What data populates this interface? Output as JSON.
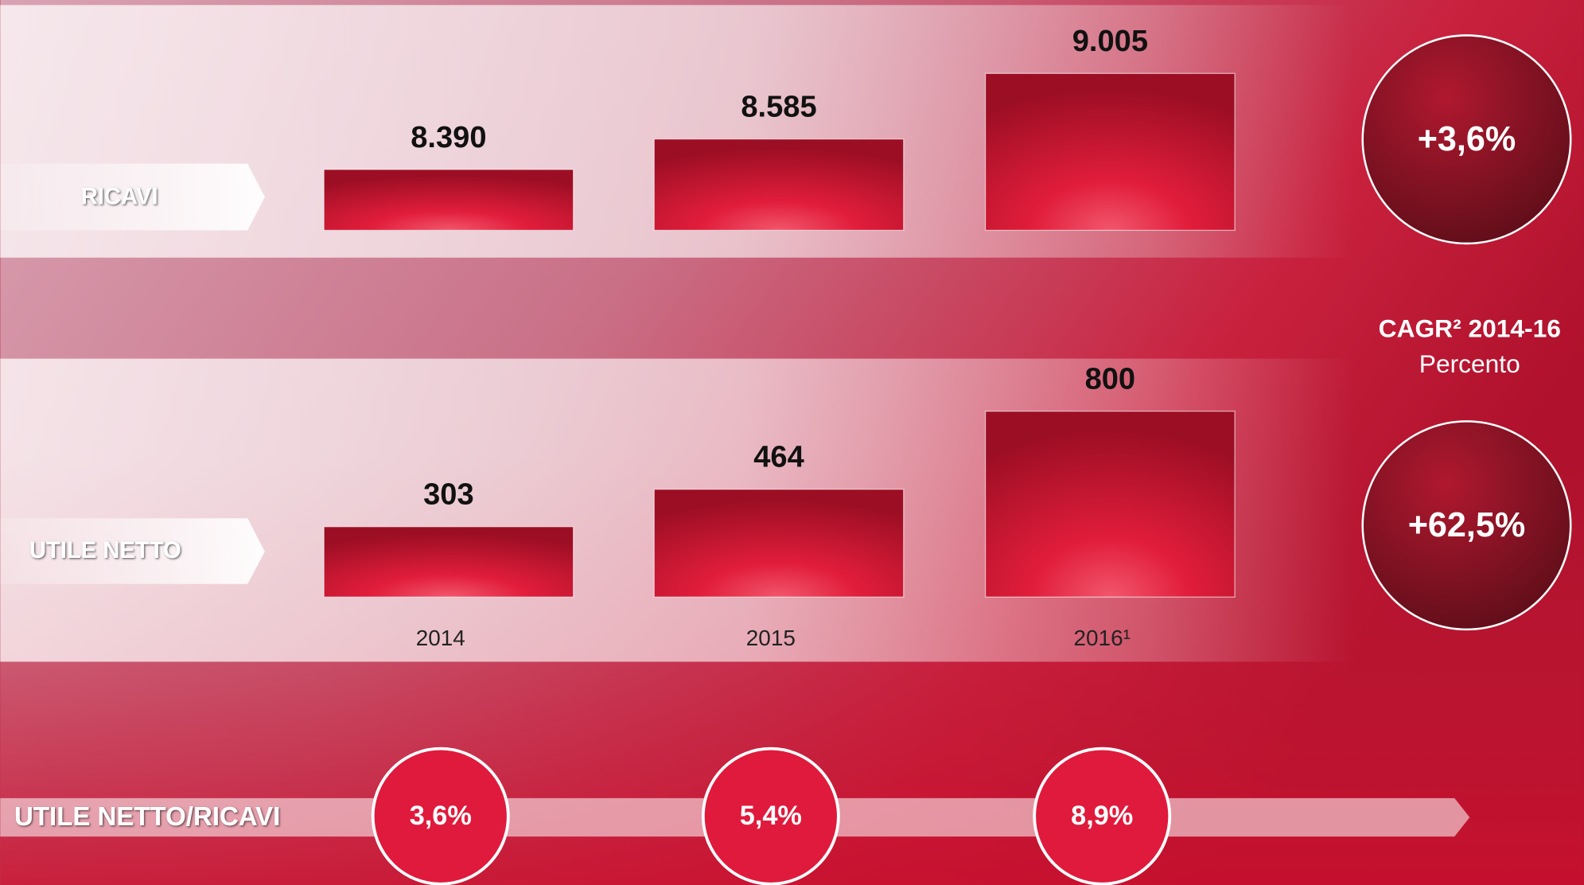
{
  "chart_data": [
    {
      "type": "bar",
      "label": "RICAVI",
      "values": [
        8390,
        8585,
        9005
      ],
      "value_labels": [
        "8.390",
        "8.585",
        "9.005"
      ],
      "ylim": [
        8000,
        9100
      ],
      "cagr": {
        "value": 3.6,
        "label": "+3,6%"
      }
    },
    {
      "type": "bar",
      "label": "UTILE NETTO",
      "categories": [
        "2014",
        "2015",
        "2016¹"
      ],
      "values": [
        303,
        464,
        800
      ],
      "value_labels": [
        "303",
        "464",
        "800"
      ],
      "ylim": [
        0,
        900
      ],
      "cagr": {
        "value": 62.5,
        "label": "+62,5%"
      }
    }
  ],
  "cagr_header": {
    "title": "CAGR² 2014-16",
    "subtitle": "Percento"
  },
  "ratio": {
    "label": "UTILE NETTO/RICAVI",
    "values": [
      3.6,
      5.4,
      8.9
    ],
    "value_labels": [
      "3,6%",
      "5,4%",
      "8,9%"
    ]
  }
}
